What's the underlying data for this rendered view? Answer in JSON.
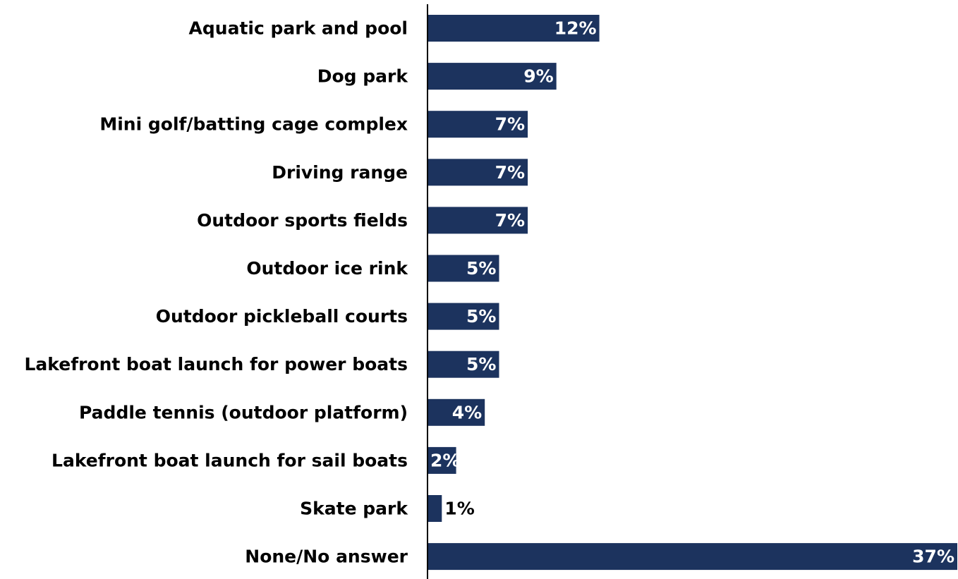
{
  "chart_data": {
    "type": "bar",
    "orientation": "horizontal",
    "categories": [
      "Aquatic park and pool",
      "Dog park",
      "Mini golf/batting cage complex",
      "Driving range",
      "Outdoor sports fields",
      "Outdoor ice rink",
      "Outdoor pickleball courts",
      "Lakefront boat launch for power boats",
      "Paddle tennis (outdoor platform)",
      "Lakefront boat launch for sail boats",
      "Skate park",
      "None/No answer"
    ],
    "values": [
      12,
      9,
      7,
      7,
      7,
      5,
      5,
      5,
      4,
      2,
      1,
      37
    ],
    "value_labels": [
      "12%",
      "9%",
      "7%",
      "7%",
      "7%",
      "5%",
      "5%",
      "5%",
      "4%",
      "2%",
      "1%",
      "37%"
    ],
    "unit": "%",
    "title": "",
    "xlabel": "",
    "ylabel": "",
    "xlim": [
      0,
      37
    ],
    "grid": false,
    "legend": "none",
    "colors": {
      "bar": "#1c335e",
      "label_inside": "#ffffff",
      "label_outside": "#000000",
      "axis": "#000000"
    }
  }
}
